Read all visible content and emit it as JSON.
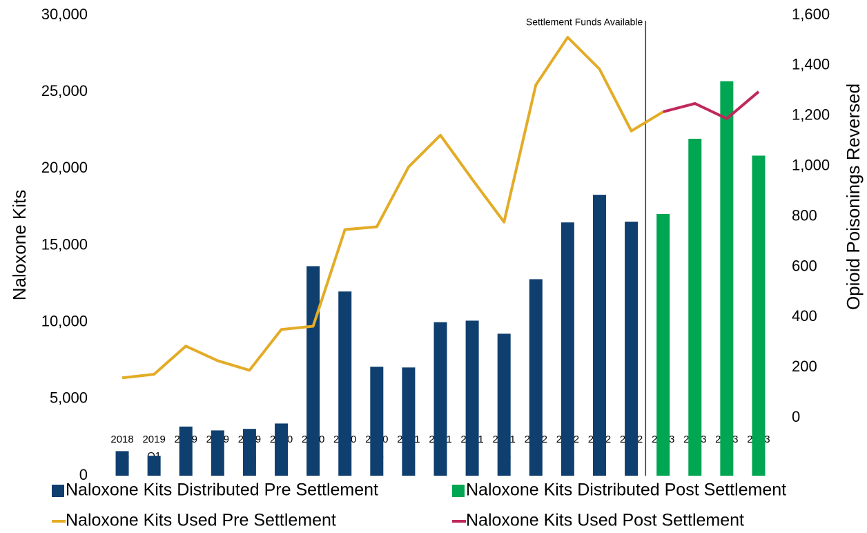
{
  "chart_data": {
    "type": "bar",
    "categories": [
      "2018 Q4",
      "2019 Q1",
      "2019 Q2",
      "2019 Q3",
      "2019 Q4",
      "2020 Q1",
      "2020 Q2",
      "2020 Q3",
      "2020 Q4",
      "2021 Q1",
      "2021 Q2",
      "2021 Q3",
      "2021 Q4",
      "2022 Q1",
      "2022 Q2",
      "2022 Q3",
      "2022 Q4",
      "2023 Q1",
      "2023 Q2",
      "2023 Q3",
      "2023 Q4"
    ],
    "ylabel": "Naloxone Kits",
    "y2label": "Opioid Poisonings Reversed",
    "annotation": "Settlement Funds Available",
    "ylim": [
      0,
      30000
    ],
    "yticks": [
      0,
      {
        "value": 5000,
        "label": "5,000"
      },
      {
        "value": 10000,
        "label": "10,000"
      },
      {
        "value": 15000,
        "label": "15,000"
      },
      {
        "value": 20000,
        "label": "20,000"
      },
      {
        "value": 25000,
        "label": "25,000"
      },
      {
        "value": 30000,
        "label": "30,000"
      }
    ],
    "y2lim": [
      -230,
      1600
    ],
    "y2ticks": [
      0,
      200,
      400,
      600,
      800,
      {
        "value": 1000,
        "label": "1,000"
      },
      {
        "value": 1200,
        "label": "1,200"
      },
      {
        "value": 1400,
        "label": "1,400"
      },
      {
        "value": 1600,
        "label": "1,600"
      }
    ],
    "grid": false,
    "series": [
      {
        "name": "Naloxone Kits Distributed Pre Settlement",
        "type": "bar",
        "color": "#0f3f6e",
        "values": [
          1600,
          1300,
          3200,
          2950,
          3050,
          3400,
          13650,
          12000,
          7100,
          7050,
          10000,
          10100,
          9250,
          12800,
          16500,
          18300,
          16550,
          null,
          null,
          null,
          null
        ]
      },
      {
        "name": "Naloxone Kits Distributed Post Settlement",
        "type": "bar",
        "color": "#00a651",
        "values": [
          null,
          null,
          null,
          null,
          null,
          null,
          null,
          null,
          null,
          null,
          null,
          null,
          null,
          null,
          null,
          null,
          null,
          17050,
          21950,
          25700,
          20850
        ]
      },
      {
        "name": "Naloxone Kits Used Pre Settlement",
        "type": "line",
        "axis": "y2",
        "color": "#e3ac27",
        "values": [
          159,
          173,
          285,
          227,
          189,
          351,
          364,
          748,
          759,
          997,
          1123,
          948,
          778,
          1323,
          1512,
          1386,
          1140,
          1216,
          null,
          null,
          null
        ]
      },
      {
        "name": "Naloxone Kits Used Post Settlement",
        "type": "line",
        "axis": "y2",
        "color": "#c0285a",
        "values": [
          null,
          null,
          null,
          null,
          null,
          null,
          null,
          null,
          null,
          null,
          null,
          null,
          null,
          null,
          null,
          null,
          null,
          1216,
          1249,
          1189,
          1296
        ]
      }
    ]
  }
}
